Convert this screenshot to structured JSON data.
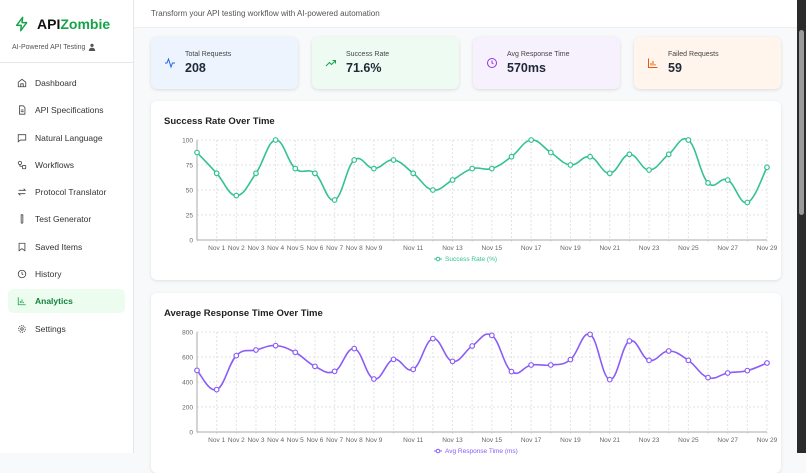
{
  "app": {
    "name_prefix": "API",
    "name_suffix": "Zombie",
    "tagline": "AI-Powered API Testing",
    "brand_color": "#16a34a"
  },
  "header": {
    "subtitle": "Transform your API testing workflow with AI-powered automation"
  },
  "sidebar": {
    "items": [
      {
        "label": "Dashboard",
        "icon": "home-icon"
      },
      {
        "label": "API Specifications",
        "icon": "file-icon"
      },
      {
        "label": "Natural Language",
        "icon": "message-icon"
      },
      {
        "label": "Workflows",
        "icon": "workflow-icon"
      },
      {
        "label": "Protocol Translator",
        "icon": "arrows-icon"
      },
      {
        "label": "Test Generator",
        "icon": "test-tube-icon"
      },
      {
        "label": "Saved Items",
        "icon": "bookmark-icon"
      },
      {
        "label": "History",
        "icon": "clock-icon"
      },
      {
        "label": "Analytics",
        "icon": "bar-chart-icon",
        "active": true
      },
      {
        "label": "Settings",
        "icon": "gear-icon"
      }
    ]
  },
  "stats": [
    {
      "label": "Total Requests",
      "value": "208",
      "icon": "activity-icon",
      "color": "#2563eb",
      "bg": "#eef4fd"
    },
    {
      "label": "Success Rate",
      "value": "71.6%",
      "icon": "trending-up-icon",
      "color": "#16a34a",
      "bg": "#eefbf2"
    },
    {
      "label": "Avg Response Time",
      "value": "570ms",
      "icon": "clock-icon",
      "color": "#9333ea",
      "bg": "#f7f0fd"
    },
    {
      "label": "Failed Requests",
      "value": "59",
      "icon": "bar-chart-icon",
      "color": "#ea580c",
      "bg": "#fff5ec"
    }
  ],
  "chart_data": [
    {
      "type": "line",
      "title": "Success Rate Over Time",
      "color": "#34c291",
      "ylim": [
        0,
        100
      ],
      "yticks": [
        0,
        25,
        50,
        75,
        100
      ],
      "grid": true,
      "legend": "bottom",
      "categories": [
        "",
        "Nov 1",
        "Nov 2",
        "Nov 3",
        "Nov 4",
        "Nov 5",
        "Nov 6",
        "Nov 7",
        "Nov 8",
        "Nov 9",
        "",
        "Nov 11",
        "",
        "Nov 13",
        "",
        "Nov 15",
        "",
        "Nov 17",
        "",
        "Nov 19",
        "",
        "Nov 21",
        "",
        "Nov 23",
        "",
        "Nov 25",
        "",
        "Nov 27",
        "",
        "Nov 29"
      ],
      "series": [
        {
          "name": "Success Rate (%)",
          "values": [
            87.5,
            66.7,
            44.4,
            66.7,
            100,
            71.4,
            66.7,
            40,
            80,
            71.4,
            80,
            66.7,
            50,
            60,
            71.4,
            71.4,
            83.3,
            100,
            87.5,
            75,
            83.3,
            66.7,
            85.7,
            70,
            85.7,
            100,
            57.1,
            60,
            37.5,
            72.7
          ]
        }
      ]
    },
    {
      "type": "line",
      "title": "Average Response Time Over Time",
      "color": "#8b5cf6",
      "ylim": [
        0,
        800
      ],
      "yticks": [
        0,
        200,
        400,
        600,
        800
      ],
      "grid": true,
      "legend": "bottom",
      "categories": [
        "",
        "Nov 1",
        "Nov 2",
        "Nov 3",
        "Nov 4",
        "Nov 5",
        "Nov 6",
        "Nov 7",
        "Nov 8",
        "Nov 9",
        "",
        "Nov 11",
        "",
        "Nov 13",
        "",
        "Nov 15",
        "",
        "Nov 17",
        "",
        "Nov 19",
        "",
        "Nov 21",
        "",
        "Nov 23",
        "",
        "Nov 25",
        "",
        "Nov 27",
        "",
        "Nov 29"
      ],
      "series": [
        {
          "name": "Avg Response Time (ms)",
          "values": [
            493,
            339,
            611,
            656,
            691,
            637,
            525,
            485,
            667,
            424,
            581,
            501,
            747,
            565,
            688,
            773,
            483,
            536,
            536,
            579,
            781,
            419,
            728,
            573,
            648,
            573,
            435,
            472,
            491,
            552
          ]
        }
      ]
    }
  ]
}
